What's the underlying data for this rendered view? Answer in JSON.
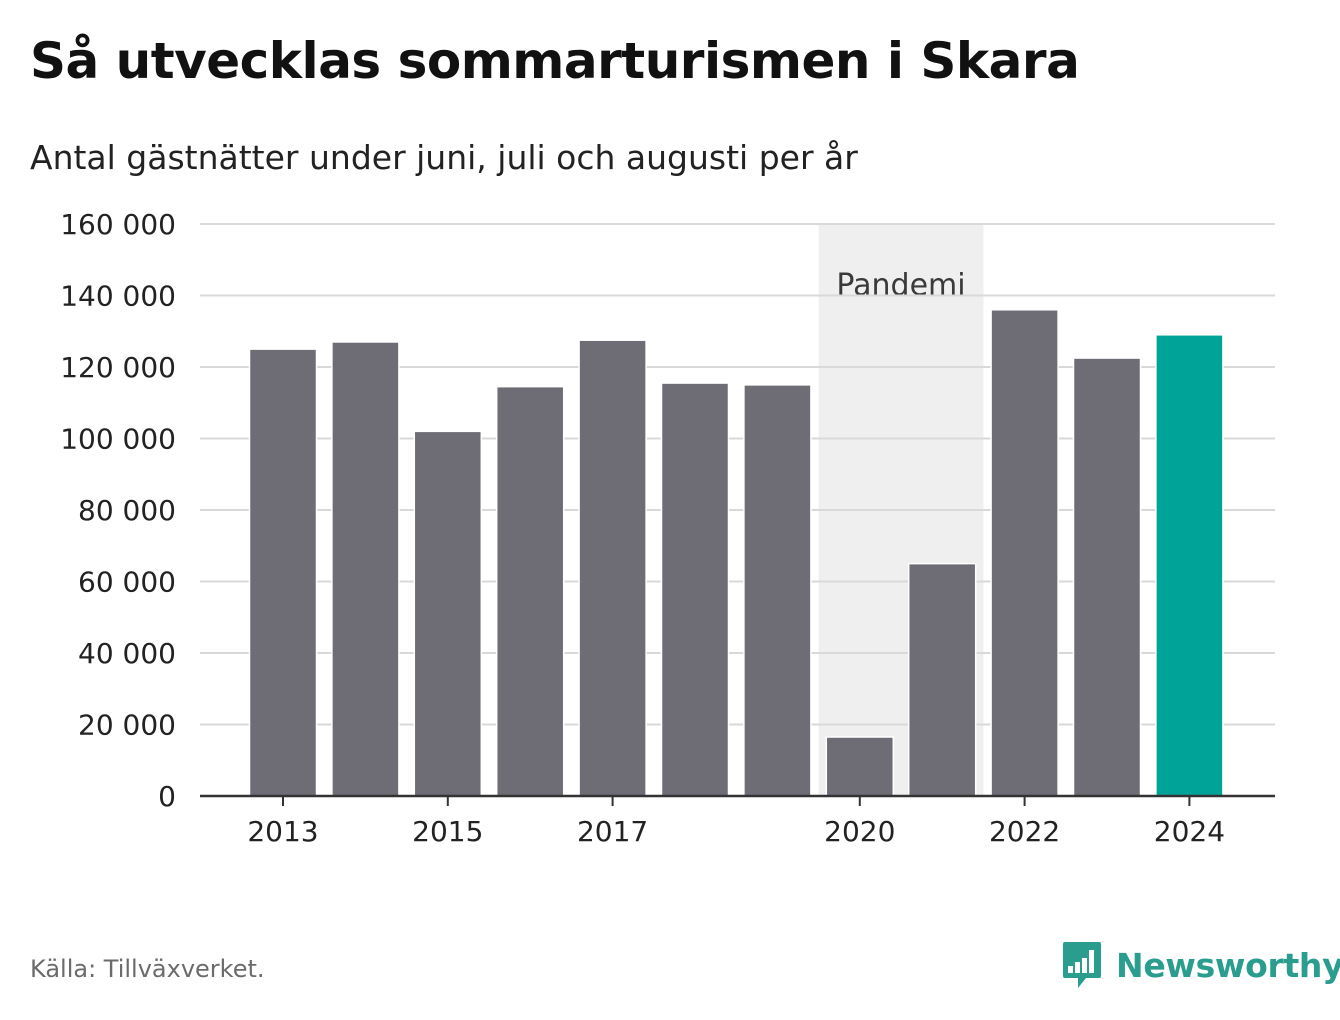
{
  "header": {
    "title": "Så utvecklas sommarturismen i Skara",
    "subtitle": "Antal gästnätter under juni, juli och augusti per år"
  },
  "annotation": {
    "label": "Pandemi",
    "from_year": 2020,
    "to_year": 2021,
    "color": "#efefef"
  },
  "footer": {
    "source": "Källa: Tillväxverket.",
    "brand": "Newsworthy",
    "brand_icon": "bar-chart-speech-bubble-icon"
  },
  "colors": {
    "bar": "#6e6d75",
    "highlight": "#00a398",
    "grid": "#d9d9d9",
    "axis": "#333333",
    "brand": "#2a9d8f"
  },
  "chart_data": {
    "type": "bar",
    "title": "Så utvecklas sommarturismen i Skara",
    "subtitle": "Antal gästnätter under juni, juli och augusti per år",
    "categories": [
      2013,
      2014,
      2015,
      2016,
      2017,
      2018,
      2019,
      2020,
      2021,
      2022,
      2023,
      2024
    ],
    "values": [
      125000,
      127000,
      102000,
      114500,
      127500,
      115500,
      115000,
      16500,
      65000,
      136000,
      122500,
      129000
    ],
    "highlight_category": 2024,
    "x_tick_labels": [
      "2013",
      "2015",
      "2017",
      "2020",
      "2022",
      "2024"
    ],
    "y_ticks": [
      0,
      20000,
      40000,
      60000,
      80000,
      100000,
      120000,
      140000,
      160000
    ],
    "y_tick_labels": [
      "0",
      "20 000",
      "40 000",
      "60 000",
      "80 000",
      "100 000",
      "120 000",
      "140 000",
      "160 000"
    ],
    "ylim": [
      0,
      160000
    ],
    "xlabel": "",
    "ylabel": "",
    "grid": true,
    "legend": false
  }
}
